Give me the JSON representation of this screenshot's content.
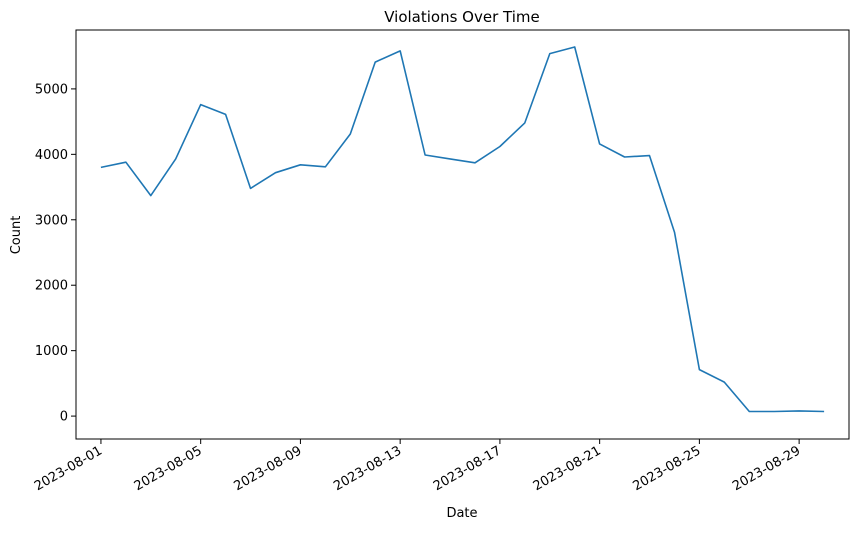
{
  "chart_data": {
    "type": "line",
    "title": "Violations Over Time",
    "xlabel": "Date",
    "ylabel": "Count",
    "x": [
      "2023-08-01",
      "2023-08-02",
      "2023-08-03",
      "2023-08-04",
      "2023-08-05",
      "2023-08-06",
      "2023-08-07",
      "2023-08-08",
      "2023-08-09",
      "2023-08-10",
      "2023-08-11",
      "2023-08-12",
      "2023-08-13",
      "2023-08-14",
      "2023-08-15",
      "2023-08-16",
      "2023-08-17",
      "2023-08-18",
      "2023-08-19",
      "2023-08-20",
      "2023-08-21",
      "2023-08-22",
      "2023-08-23",
      "2023-08-24",
      "2023-08-25",
      "2023-08-26",
      "2023-08-27",
      "2023-08-28",
      "2023-08-29",
      "2023-08-30"
    ],
    "series": [
      {
        "values": [
          3800,
          3880,
          3370,
          3930,
          4760,
          4610,
          3480,
          3720,
          3840,
          3810,
          4310,
          5410,
          5580,
          3990,
          3930,
          3870,
          4120,
          4480,
          5540,
          5640,
          4160,
          3960,
          3980,
          2810,
          710,
          520,
          70,
          70,
          80,
          70
        ],
        "color": "#1f77b4"
      }
    ],
    "xticks": [
      "2023-08-01",
      "2023-08-05",
      "2023-08-09",
      "2023-08-13",
      "2023-08-17",
      "2023-08-21",
      "2023-08-25",
      "2023-08-29"
    ],
    "yticks": [
      0,
      1000,
      2000,
      3000,
      4000,
      5000
    ],
    "xlim": [
      "2023-07-31",
      "2023-08-31"
    ],
    "ylim": [
      -350,
      5900
    ],
    "grid": false,
    "legend": "none"
  }
}
